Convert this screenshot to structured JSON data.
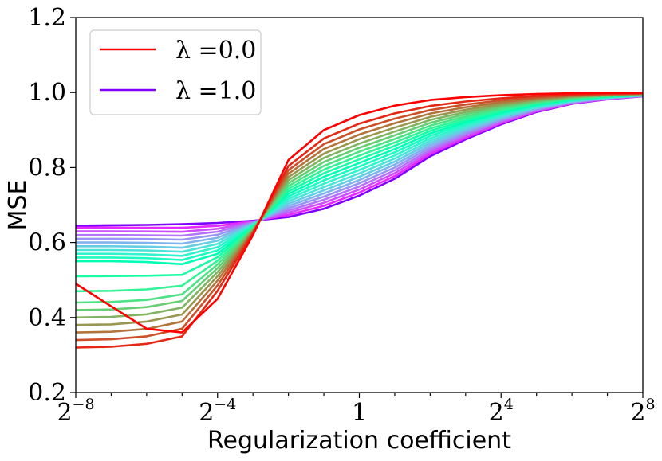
{
  "chart_data": {
    "type": "line",
    "title": "",
    "xlabel": "Regularization coefficient",
    "ylabel": "MSE",
    "x_scale": "log2",
    "xlim_log2": [
      -8,
      8
    ],
    "ylim": [
      0.2,
      1.2
    ],
    "grid": false,
    "legend_position": "top-left",
    "x_log2": [
      -8,
      -7,
      -6,
      -5,
      -4,
      -3,
      -2,
      -1,
      0,
      1,
      2,
      3,
      4,
      5,
      6,
      7,
      8
    ],
    "x_tick_labels": [
      {
        "base": "2",
        "exp": "−8",
        "pos": -8
      },
      {
        "base": "2",
        "exp": "−4",
        "pos": -4
      },
      {
        "base": "1",
        "exp": "",
        "pos": 0
      },
      {
        "base": "2",
        "exp": "4",
        "pos": 4
      },
      {
        "base": "2",
        "exp": "8",
        "pos": 8
      }
    ],
    "y_ticks": [
      0.2,
      0.4,
      0.6,
      0.8,
      1.0,
      1.2
    ],
    "y_tick_labels": [
      "0.2",
      "0.4",
      "0.6",
      "0.8",
      "1.0",
      "1.2"
    ],
    "lambda_count": 21,
    "lambda_range": [
      0.0,
      1.0
    ],
    "series": [
      {
        "name": "λ = 0.0",
        "lambda": 0.0,
        "color": "#ff0000",
        "values": [
          0.49,
          0.43,
          0.37,
          0.36,
          0.45,
          0.62,
          0.82,
          0.9,
          0.94,
          0.965,
          0.98,
          0.988,
          0.993,
          0.996,
          0.998,
          0.999,
          0.999
        ]
      },
      {
        "name": "λ = 1.0",
        "lambda": 1.0,
        "color": "#8000ff",
        "values": [
          0.645,
          0.646,
          0.647,
          0.649,
          0.652,
          0.658,
          0.668,
          0.69,
          0.725,
          0.77,
          0.83,
          0.875,
          0.915,
          0.948,
          0.97,
          0.982,
          0.99
        ]
      }
    ],
    "low_lambda_shape": {
      "end_value_at_xmin": [
        0.32,
        0.32,
        0.34,
        0.36,
        0.38,
        0.4,
        0.42,
        0.44,
        0.47,
        0.51,
        0.55,
        0.56,
        0.57,
        0.58,
        0.59,
        0.6,
        0.61,
        0.62,
        0.63,
        0.64
      ]
    },
    "legend": [
      {
        "label_prefix": "λ =",
        "label_value": "0.0",
        "color": "#ff0000"
      },
      {
        "label_prefix": "λ =",
        "label_value": "1.0",
        "color": "#8000ff"
      }
    ]
  }
}
